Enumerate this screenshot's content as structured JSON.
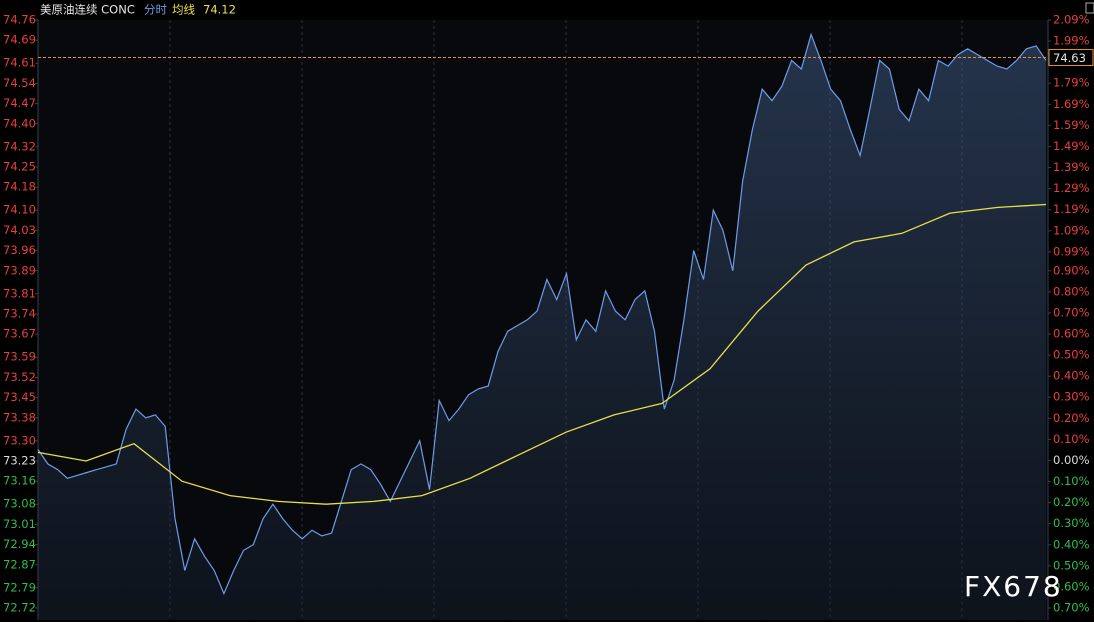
{
  "chart_data": {
    "type": "line",
    "title": "美原油连续 CONC",
    "ylim": [
      72.72,
      74.76
    ],
    "yticks": [
      74.76,
      74.69,
      74.61,
      74.54,
      74.47,
      {
        "value": 74.4,
        "label": "74.40"
      },
      74.32,
      74.25,
      74.18,
      {
        "value": 74.1,
        "label": "74.10"
      },
      74.03,
      73.96,
      73.89,
      73.81,
      73.74,
      73.67,
      73.59,
      73.52,
      73.45,
      73.38,
      {
        "value": 73.3,
        "label": "73.30"
      },
      73.23,
      73.16,
      73.08,
      73.01,
      72.94,
      72.87,
      72.79,
      72.72
    ],
    "y2lim": [
      -0.7,
      2.09
    ],
    "y2ticks": [
      {
        "value": 2.09,
        "label": "2.09%"
      },
      {
        "value": 1.99,
        "label": "1.99%"
      },
      {
        "value": 1.89,
        "label": "1.89%"
      },
      {
        "value": 1.79,
        "label": "1.79%"
      },
      {
        "value": 1.69,
        "label": "1.69%"
      },
      {
        "value": 1.59,
        "label": "1.59%"
      },
      {
        "value": 1.49,
        "label": "1.49%"
      },
      {
        "value": 1.39,
        "label": "1.39%"
      },
      {
        "value": 1.29,
        "label": "1.29%"
      },
      {
        "value": 1.19,
        "label": "1.19%"
      },
      {
        "value": 1.09,
        "label": "1.09%"
      },
      {
        "value": 0.99,
        "label": "0.99%"
      },
      {
        "value": 0.9,
        "label": "0.90%"
      },
      {
        "value": 0.8,
        "label": "0.80%"
      },
      {
        "value": 0.7,
        "label": "0.70%"
      },
      {
        "value": 0.6,
        "label": "0.60%"
      },
      {
        "value": 0.5,
        "label": "0.50%"
      },
      {
        "value": 0.4,
        "label": "0.40%"
      },
      {
        "value": 0.3,
        "label": "0.30%"
      },
      {
        "value": 0.2,
        "label": "0.20%"
      },
      {
        "value": 0.1,
        "label": "0.10%"
      },
      {
        "value": 0,
        "label": "0.00%"
      },
      {
        "value": -0.1,
        "label": "0.10%"
      },
      {
        "value": -0.2,
        "label": "0.20%"
      },
      {
        "value": -0.3,
        "label": "0.30%"
      },
      {
        "value": -0.4,
        "label": "0.40%"
      },
      {
        "value": -0.5,
        "label": "0.50%"
      },
      {
        "value": -0.6,
        "label": "0.60%"
      },
      {
        "value": -0.7,
        "label": "0.70%"
      }
    ],
    "series": [
      {
        "name": "分时",
        "color": "#6f9be8",
        "values": [
          73.27,
          73.22,
          73.2,
          73.17,
          73.18,
          73.19,
          73.2,
          73.21,
          73.22,
          73.34,
          73.41,
          73.38,
          73.39,
          73.35,
          73.03,
          72.85,
          72.96,
          72.9,
          72.85,
          72.77,
          72.85,
          72.92,
          72.94,
          73.03,
          73.08,
          73.03,
          72.99,
          72.96,
          72.99,
          72.97,
          72.98,
          73.09,
          73.2,
          73.22,
          73.2,
          73.15,
          73.09,
          73.16,
          73.23,
          73.3,
          73.13,
          73.44,
          73.37,
          73.41,
          73.46,
          73.48,
          73.49,
          73.61,
          73.68,
          73.7,
          73.72,
          73.75,
          73.86,
          73.79,
          73.88,
          73.65,
          73.72,
          73.68,
          73.82,
          73.75,
          73.72,
          73.79,
          73.82,
          73.68,
          73.41,
          73.51,
          73.72,
          73.96,
          73.86,
          74.1,
          74.03,
          73.89,
          74.2,
          74.38,
          74.52,
          74.48,
          74.53,
          74.62,
          74.59,
          74.71,
          74.62,
          74.52,
          74.48,
          74.38,
          74.29,
          74.45,
          74.62,
          74.59,
          74.45,
          74.41,
          74.52,
          74.48,
          74.62,
          74.6,
          74.64,
          74.66,
          74.64,
          74.62,
          74.6,
          74.59,
          74.62,
          74.66,
          74.67,
          74.62
        ]
      },
      {
        "name": "均线",
        "color": "#e8e04a",
        "values": [
          73.26,
          73.23,
          73.29,
          73.16,
          73.11,
          73.09,
          73.08,
          73.09,
          73.11,
          73.17,
          73.25,
          73.33,
          73.39,
          73.43,
          73.55,
          73.75,
          73.91,
          73.99,
          74.02,
          74.09,
          74.11,
          74.12
        ]
      }
    ],
    "current_price": 74.63,
    "current_price_color": "#e8903a",
    "up_color": "#e8403a",
    "down_color": "#2fbf4a",
    "watermark": "FX678"
  }
}
